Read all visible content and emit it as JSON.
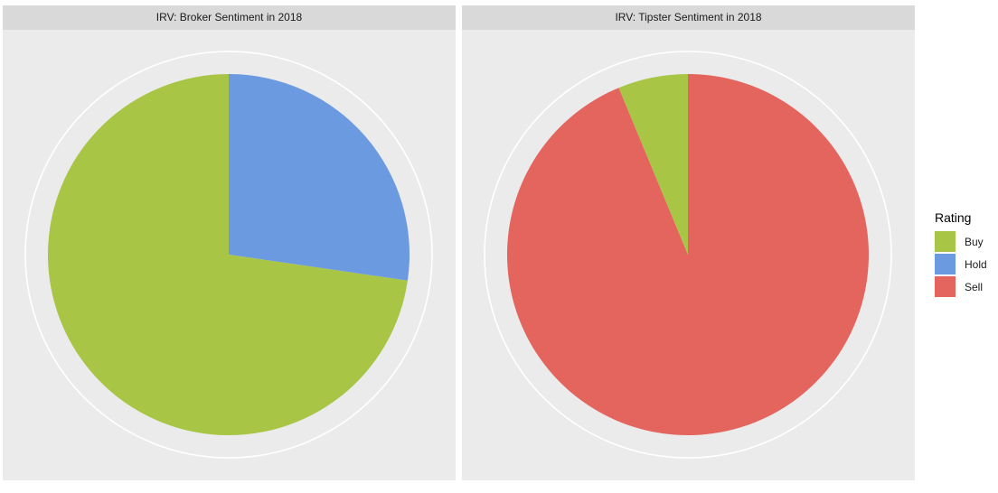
{
  "chart_data": [
    {
      "type": "pie",
      "title": "IRV: Broker Sentiment in 2018",
      "categories": [
        "Buy",
        "Hold",
        "Sell"
      ],
      "values": [
        72.7,
        27.3,
        0
      ],
      "colors": [
        "#a8c545",
        "#6b9ae0",
        "#e3655e"
      ]
    },
    {
      "type": "pie",
      "title": "IRV: Tipster Sentiment in 2018",
      "categories": [
        "Buy",
        "Hold",
        "Sell"
      ],
      "values": [
        6.25,
        0,
        93.75
      ],
      "colors": [
        "#a8c545",
        "#6b9ae0",
        "#e3655e"
      ]
    }
  ],
  "panels": [
    {
      "title": "IRV: Broker Sentiment in 2018"
    },
    {
      "title": "IRV: Tipster Sentiment in 2018"
    }
  ],
  "legend": {
    "title": "Rating",
    "items": [
      {
        "label": "Buy",
        "color": "#a8c545"
      },
      {
        "label": "Hold",
        "color": "#6b9ae0"
      },
      {
        "label": "Sell",
        "color": "#e3655e"
      }
    ]
  }
}
